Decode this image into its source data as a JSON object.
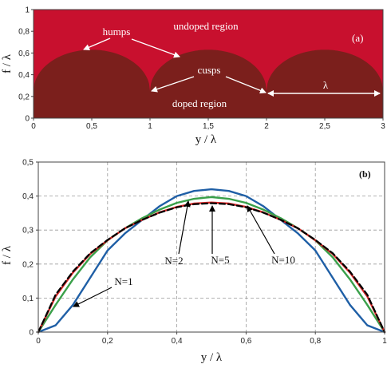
{
  "chart_data": [
    {
      "id": "a",
      "type": "area",
      "panel_label": "(a)",
      "xlabel": "y / λ",
      "ylabel": "f / λ",
      "xlim": [
        0,
        3
      ],
      "ylim": [
        0,
        1
      ],
      "xticks": [
        "0",
        "0,5",
        "1",
        "1,5",
        "2",
        "2,5",
        "3"
      ],
      "yticks": [
        "0",
        "0,2",
        "0,4",
        "0,6",
        "0,8",
        "1"
      ],
      "grid": false,
      "hump_profile": {
        "period": 1,
        "base": 0.25,
        "peak": 0.63
      },
      "regions": [
        {
          "name": "undoped region",
          "color": "#c8102e"
        },
        {
          "name": "doped region",
          "color": "#7b1f1c"
        }
      ],
      "annotations": [
        {
          "text": "humps",
          "x": 0.7,
          "y": 0.82
        },
        {
          "text": "cusps",
          "x": 1.5,
          "y": 0.6
        },
        {
          "text": "λ",
          "x": 2.5,
          "y": 0.12
        }
      ]
    },
    {
      "id": "b",
      "type": "line",
      "panel_label": "(b)",
      "xlabel": "y / λ",
      "ylabel": "f / λ",
      "xlim": [
        0,
        1
      ],
      "ylim": [
        0,
        0.5
      ],
      "xticks": [
        "0",
        "0,2",
        "0,4",
        "0,6",
        "0,8",
        "1"
      ],
      "yticks": [
        "0",
        "0,1",
        "0,2",
        "0,3",
        "0,4",
        "0,5"
      ],
      "grid": true,
      "series": [
        {
          "name": "N=1",
          "color": "#1f5fa6",
          "style": "solid",
          "x": [
            0,
            0.05,
            0.1,
            0.15,
            0.2,
            0.25,
            0.3,
            0.35,
            0.4,
            0.45,
            0.5,
            0.55,
            0.6,
            0.65,
            0.7,
            0.75,
            0.8,
            0.85,
            0.9,
            0.95,
            1
          ],
          "y": [
            0,
            0.02,
            0.08,
            0.16,
            0.24,
            0.29,
            0.33,
            0.37,
            0.4,
            0.415,
            0.42,
            0.415,
            0.4,
            0.37,
            0.33,
            0.29,
            0.24,
            0.16,
            0.08,
            0.02,
            0
          ]
        },
        {
          "name": "N=2",
          "color": "#3aa04a",
          "style": "solid",
          "x": [
            0,
            0.05,
            0.1,
            0.15,
            0.2,
            0.25,
            0.3,
            0.35,
            0.4,
            0.45,
            0.5,
            0.55,
            0.6,
            0.65,
            0.7,
            0.75,
            0.8,
            0.85,
            0.9,
            0.95,
            1
          ],
          "y": [
            0,
            0.08,
            0.155,
            0.22,
            0.27,
            0.305,
            0.335,
            0.36,
            0.38,
            0.392,
            0.397,
            0.392,
            0.38,
            0.36,
            0.335,
            0.305,
            0.27,
            0.22,
            0.155,
            0.08,
            0
          ]
        },
        {
          "name": "N=5",
          "color": "#d62728",
          "style": "solid",
          "x": [
            0,
            0.05,
            0.1,
            0.15,
            0.2,
            0.25,
            0.3,
            0.35,
            0.4,
            0.45,
            0.5,
            0.55,
            0.6,
            0.65,
            0.7,
            0.75,
            0.8,
            0.85,
            0.9,
            0.95,
            1
          ],
          "y": [
            0,
            0.105,
            0.175,
            0.23,
            0.27,
            0.305,
            0.33,
            0.352,
            0.368,
            0.378,
            0.381,
            0.378,
            0.368,
            0.352,
            0.33,
            0.305,
            0.27,
            0.23,
            0.175,
            0.105,
            0
          ]
        },
        {
          "name": "N=10",
          "color": "#000000",
          "style": "dashed",
          "x": [
            0,
            0.05,
            0.1,
            0.15,
            0.2,
            0.25,
            0.3,
            0.35,
            0.4,
            0.45,
            0.5,
            0.55,
            0.6,
            0.65,
            0.7,
            0.75,
            0.8,
            0.85,
            0.9,
            0.95,
            1
          ],
          "y": [
            0,
            0.11,
            0.178,
            0.232,
            0.271,
            0.305,
            0.33,
            0.351,
            0.367,
            0.376,
            0.379,
            0.376,
            0.367,
            0.351,
            0.33,
            0.305,
            0.271,
            0.232,
            0.178,
            0.11,
            0
          ]
        }
      ]
    }
  ]
}
